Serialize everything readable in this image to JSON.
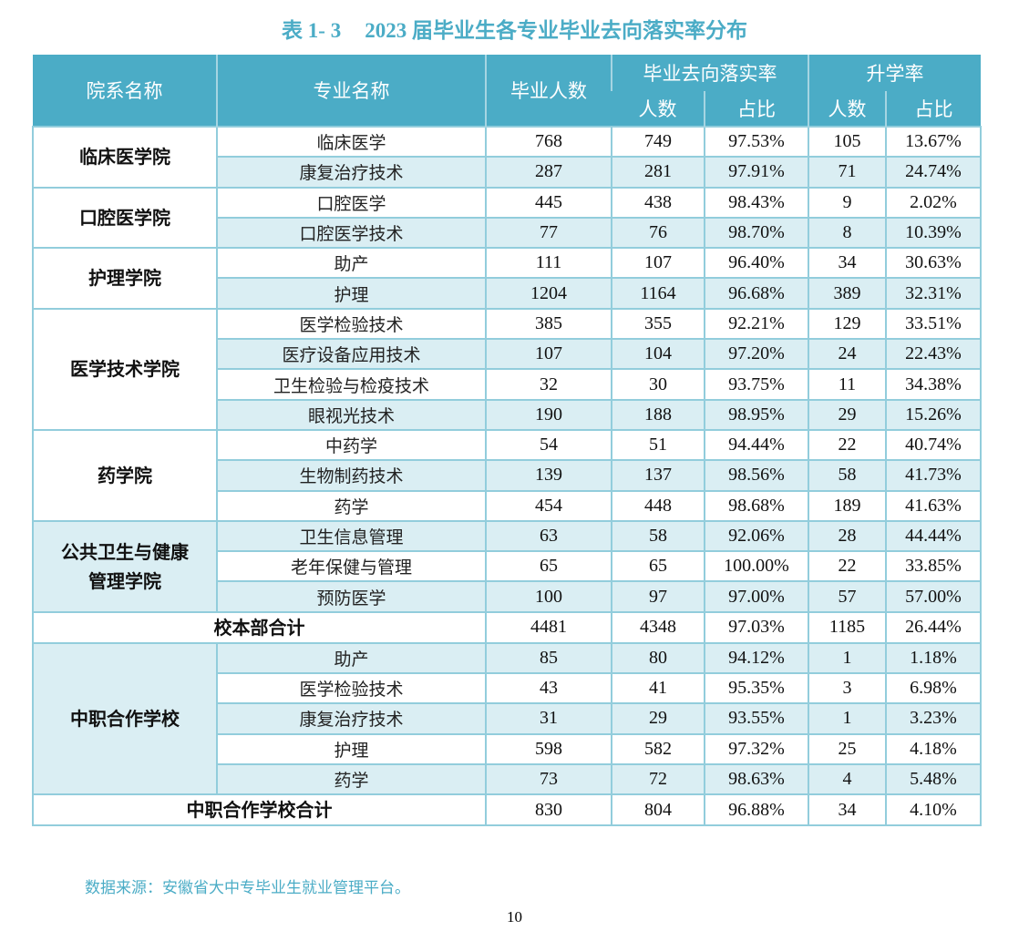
{
  "title": {
    "label": "表 1- 3",
    "text": "2023 届毕业生各专业毕业去向落实率分布"
  },
  "colors": {
    "header_bg": "#4BACC6",
    "row_alt": "#DAEEF3",
    "border": "#92CDDC",
    "title": "#4BACC6"
  },
  "headers": {
    "college": "院系名称",
    "major": "专业名称",
    "graduates": "毕业人数",
    "placement": "毕业去向落实率",
    "further": "升学率",
    "count": "人数",
    "ratio": "占比"
  },
  "groups": [
    {
      "college": "临床医学院",
      "rows": [
        [
          "临床医学",
          "768",
          "749",
          "97.53%",
          "105",
          "13.67%"
        ],
        [
          "康复治疗技术",
          "287",
          "281",
          "97.91%",
          "71",
          "24.74%"
        ]
      ]
    },
    {
      "college": "口腔医学院",
      "rows": [
        [
          "口腔医学",
          "445",
          "438",
          "98.43%",
          "9",
          "2.02%"
        ],
        [
          "口腔医学技术",
          "77",
          "76",
          "98.70%",
          "8",
          "10.39%"
        ]
      ]
    },
    {
      "college": "护理学院",
      "rows": [
        [
          "助产",
          "111",
          "107",
          "96.40%",
          "34",
          "30.63%"
        ],
        [
          "护理",
          "1204",
          "1164",
          "96.68%",
          "389",
          "32.31%"
        ]
      ]
    },
    {
      "college": "医学技术学院",
      "rows": [
        [
          "医学检验技术",
          "385",
          "355",
          "92.21%",
          "129",
          "33.51%"
        ],
        [
          "医疗设备应用技术",
          "107",
          "104",
          "97.20%",
          "24",
          "22.43%"
        ],
        [
          "卫生检验与检疫技术",
          "32",
          "30",
          "93.75%",
          "11",
          "34.38%"
        ],
        [
          "眼视光技术",
          "190",
          "188",
          "98.95%",
          "29",
          "15.26%"
        ]
      ]
    },
    {
      "college": "药学院",
      "rows": [
        [
          "中药学",
          "54",
          "51",
          "94.44%",
          "22",
          "40.74%"
        ],
        [
          "生物制药技术",
          "139",
          "137",
          "98.56%",
          "58",
          "41.73%"
        ],
        [
          "药学",
          "454",
          "448",
          "98.68%",
          "189",
          "41.63%"
        ]
      ]
    },
    {
      "college": "公共卫生与健康管理学院",
      "college_lines": [
        "公共卫生与健康",
        "管理学院"
      ],
      "shaded": true,
      "rows": [
        [
          "卫生信息管理",
          "63",
          "58",
          "92.06%",
          "28",
          "44.44%"
        ],
        [
          "老年保健与管理",
          "65",
          "65",
          "100.00%",
          "22",
          "33.85%"
        ],
        [
          "预防医学",
          "100",
          "97",
          "97.00%",
          "57",
          "57.00%"
        ]
      ]
    },
    {
      "total": [
        "校本部合计",
        "4481",
        "4348",
        "97.03%",
        "1185",
        "26.44%"
      ]
    },
    {
      "college": "中职合作学校",
      "shaded": true,
      "rows": [
        [
          "助产",
          "85",
          "80",
          "94.12%",
          "1",
          "1.18%"
        ],
        [
          "医学检验技术",
          "43",
          "41",
          "95.35%",
          "3",
          "6.98%"
        ],
        [
          "康复治疗技术",
          "31",
          "29",
          "93.55%",
          "1",
          "3.23%"
        ],
        [
          "护理",
          "598",
          "582",
          "97.32%",
          "25",
          "4.18%"
        ],
        [
          "药学",
          "73",
          "72",
          "98.63%",
          "4",
          "5.48%"
        ]
      ]
    },
    {
      "total": [
        "中职合作学校合计",
        "830",
        "804",
        "96.88%",
        "34",
        "4.10%"
      ]
    }
  ],
  "source": "数据来源：安徽省大中专毕业生就业管理平台。",
  "page_number": "10"
}
